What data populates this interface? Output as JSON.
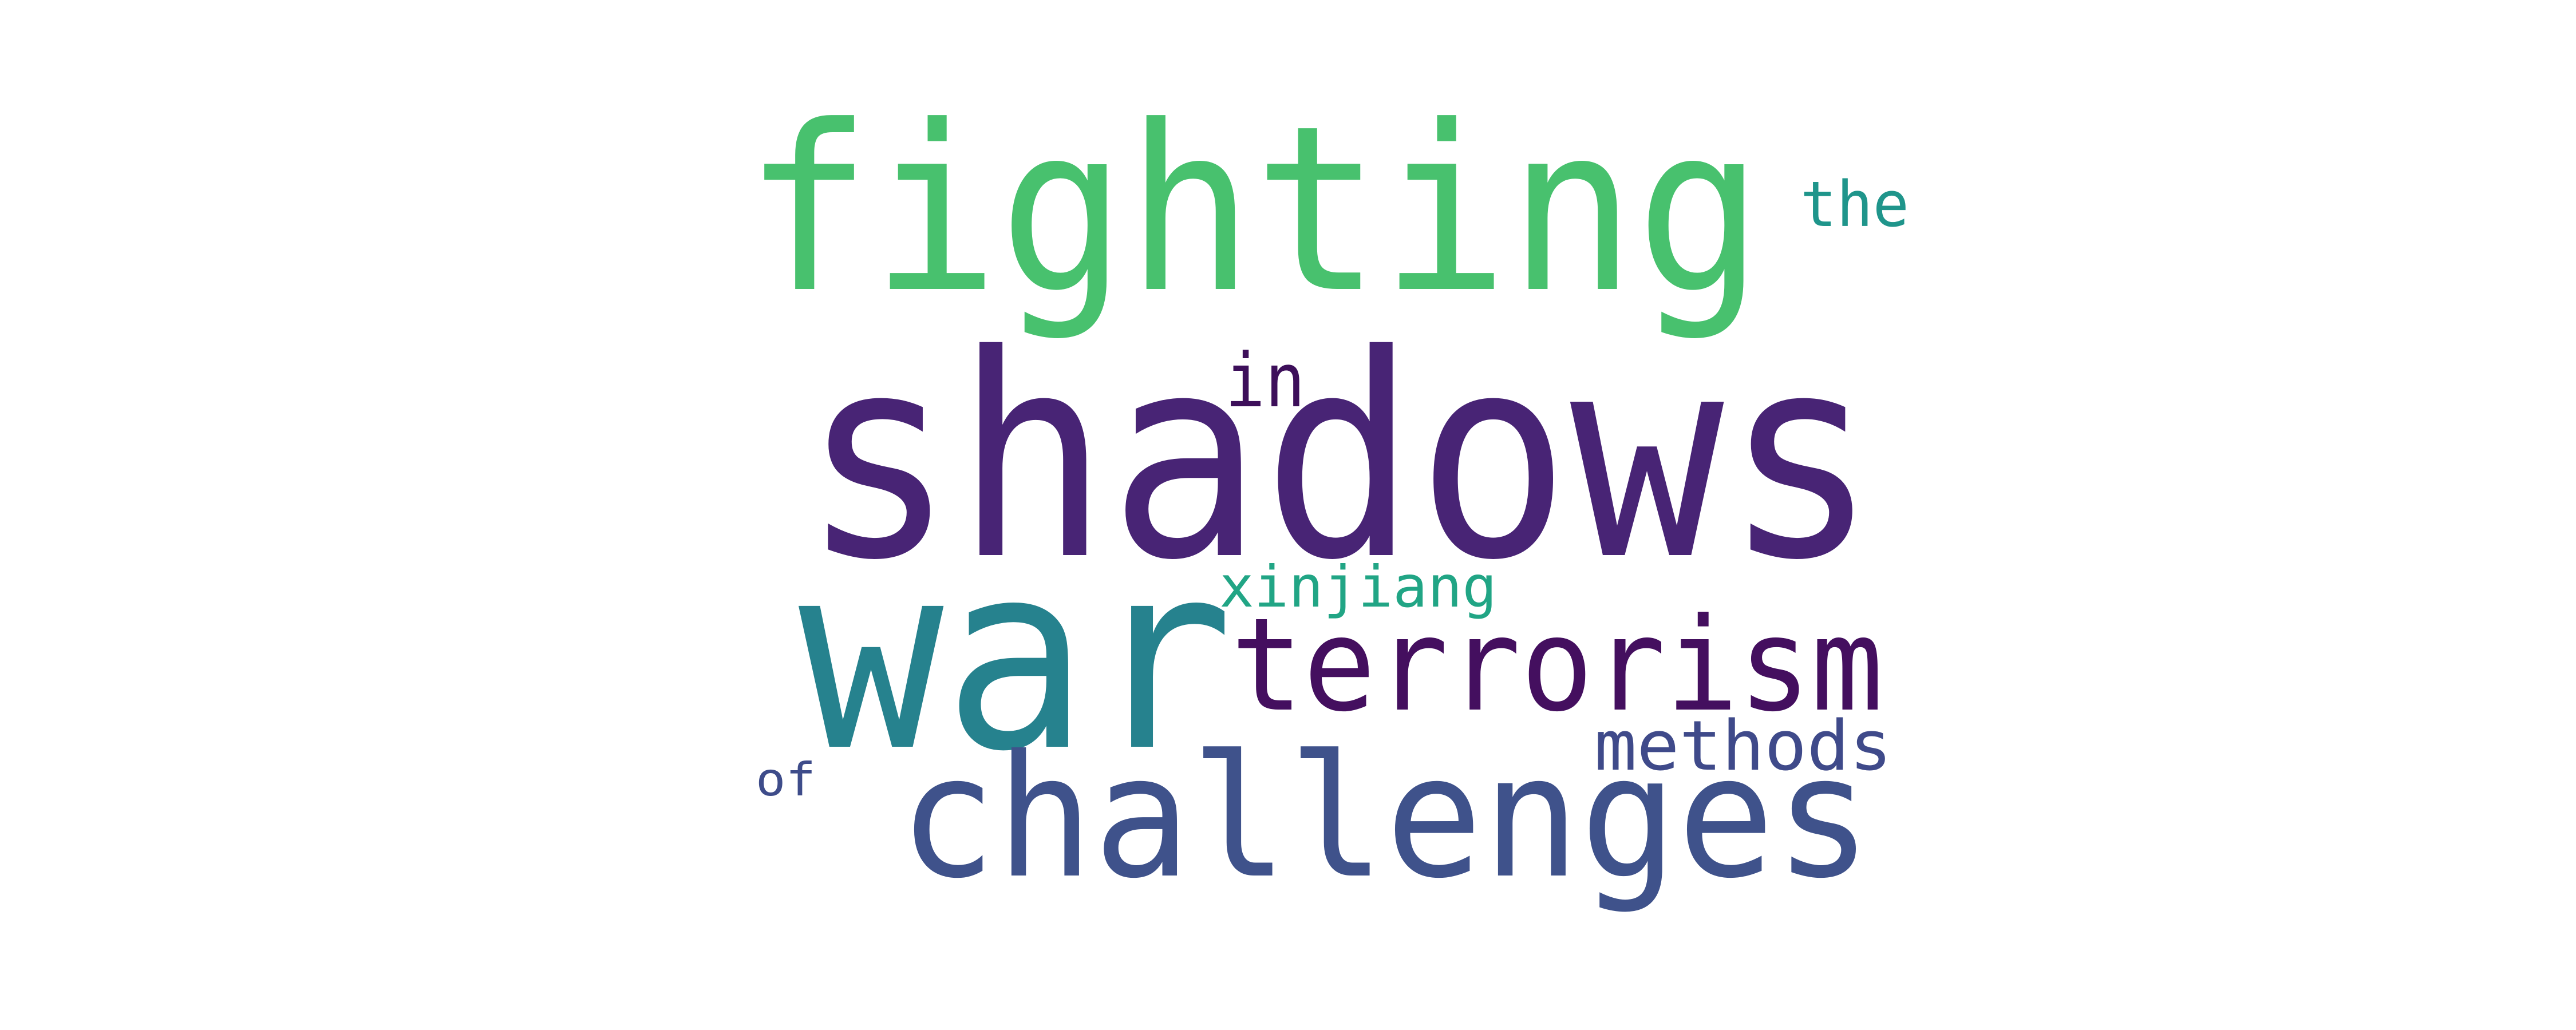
{
  "words": [
    {
      "text": "shadows",
      "color": "#482475"
    },
    {
      "text": "fighting",
      "color": "#48c16e"
    },
    {
      "text": "war",
      "color": "#26828e"
    },
    {
      "text": "terrorism",
      "color": "#440f5f"
    },
    {
      "text": "challenges",
      "color": "#3f528b"
    },
    {
      "text": "methods",
      "color": "#3f4a8a"
    },
    {
      "text": "xinjiang",
      "color": "#21a585"
    },
    {
      "text": "the",
      "color": "#1f958b"
    },
    {
      "text": "in",
      "color": "#3d0f5a"
    },
    {
      "text": "of",
      "color": "#3e4c8a"
    }
  ]
}
